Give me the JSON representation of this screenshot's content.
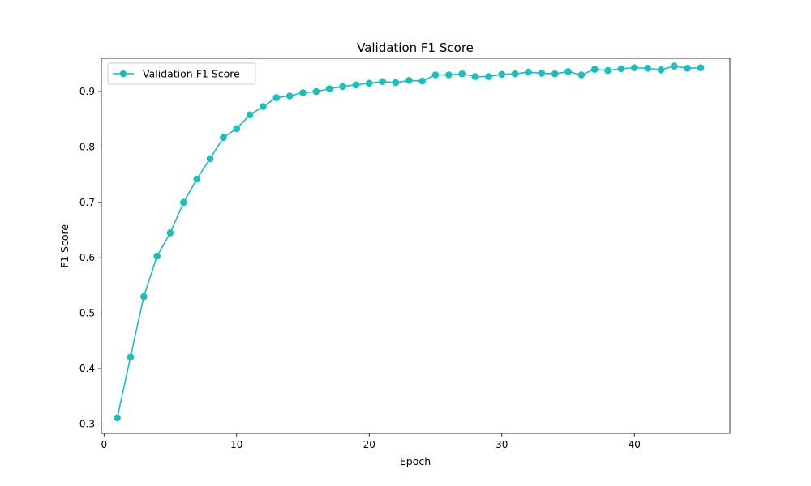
{
  "chart_data": {
    "type": "line",
    "title": "Validation F1 Score",
    "xlabel": "Epoch",
    "ylabel": "F1 Score",
    "xlim": [
      -0.2,
      47.2
    ],
    "ylim": [
      0.283,
      0.96
    ],
    "x_ticks": [
      0,
      10,
      20,
      30,
      40
    ],
    "y_ticks": [
      0.3,
      0.4,
      0.5,
      0.6,
      0.7,
      0.8,
      0.9
    ],
    "y_tick_labels": [
      "0.3",
      "0.4",
      "0.5",
      "0.6",
      "0.7",
      "0.8",
      "0.9"
    ],
    "grid": false,
    "legend": "upper-left",
    "series": [
      {
        "name": "Validation F1 Score",
        "color": "#17bfbf",
        "marker": "circle",
        "x": [
          1,
          2,
          3,
          4,
          5,
          6,
          7,
          8,
          9,
          10,
          11,
          12,
          13,
          14,
          15,
          16,
          17,
          18,
          19,
          20,
          21,
          22,
          23,
          24,
          25,
          26,
          27,
          28,
          29,
          30,
          31,
          32,
          33,
          34,
          35,
          36,
          37,
          38,
          39,
          40,
          41,
          42,
          43,
          44,
          45
        ],
        "values": [
          0.311,
          0.421,
          0.53,
          0.603,
          0.645,
          0.7,
          0.742,
          0.779,
          0.817,
          0.833,
          0.858,
          0.873,
          0.889,
          0.892,
          0.898,
          0.9,
          0.905,
          0.909,
          0.912,
          0.915,
          0.918,
          0.916,
          0.92,
          0.919,
          0.93,
          0.93,
          0.932,
          0.927,
          0.927,
          0.931,
          0.932,
          0.935,
          0.933,
          0.932,
          0.936,
          0.93,
          0.94,
          0.938,
          0.941,
          0.943,
          0.942,
          0.939,
          0.946,
          0.942,
          0.943
        ]
      }
    ]
  }
}
